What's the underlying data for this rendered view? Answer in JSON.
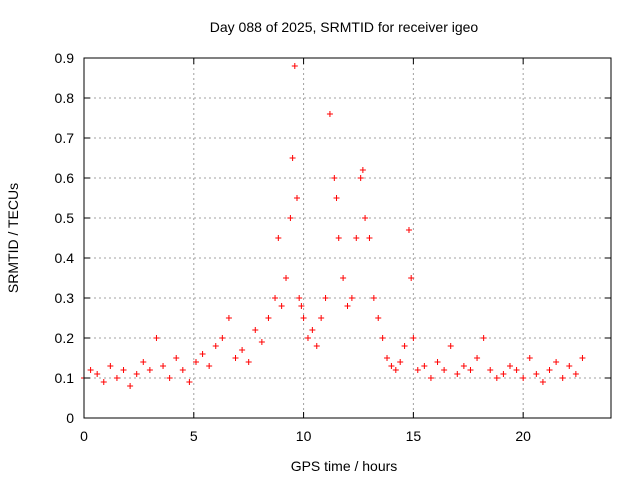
{
  "chart_data": {
    "type": "scatter",
    "title": "Day 088 of 2025, SRMTID for receiver igeo",
    "xlabel": "GPS time / hours",
    "ylabel": "SRMTID / TECUs",
    "xlim": [
      0,
      24
    ],
    "ylim": [
      0,
      0.9
    ],
    "xticks": [
      "0",
      "5",
      "10",
      "15",
      "20"
    ],
    "yticks": [
      "0",
      "0.1",
      "0.2",
      "0.3",
      "0.4",
      "0.5",
      "0.6",
      "0.7",
      "0.8",
      "0.9"
    ],
    "grid": true,
    "marker": "+",
    "color": "#ff0000",
    "series": [
      {
        "name": "SRMTID",
        "x": [
          0.0,
          0.3,
          0.6,
          0.9,
          1.2,
          1.5,
          1.8,
          2.1,
          2.4,
          2.7,
          3.0,
          3.3,
          3.6,
          3.9,
          4.2,
          4.5,
          4.8,
          5.1,
          5.4,
          5.7,
          6.0,
          6.3,
          6.6,
          6.9,
          7.2,
          7.5,
          7.8,
          8.1,
          8.4,
          8.7,
          8.85,
          9.0,
          9.2,
          9.4,
          9.5,
          9.6,
          9.7,
          9.8,
          9.9,
          10.0,
          10.2,
          10.4,
          10.6,
          10.8,
          11.0,
          11.2,
          11.4,
          11.5,
          11.6,
          11.8,
          12.0,
          12.2,
          12.4,
          12.6,
          12.7,
          12.8,
          13.0,
          13.2,
          13.4,
          13.6,
          13.8,
          14.0,
          14.2,
          14.4,
          14.6,
          14.8,
          14.9,
          15.0,
          15.2,
          15.5,
          15.8,
          16.1,
          16.4,
          16.7,
          17.0,
          17.3,
          17.6,
          17.9,
          18.2,
          18.5,
          18.8,
          19.1,
          19.4,
          19.7,
          20.0,
          20.3,
          20.6,
          20.9,
          21.2,
          21.5,
          21.8,
          22.1,
          22.4,
          22.7
        ],
        "y": [
          0.1,
          0.12,
          0.11,
          0.09,
          0.13,
          0.1,
          0.12,
          0.08,
          0.11,
          0.14,
          0.12,
          0.2,
          0.13,
          0.1,
          0.15,
          0.12,
          0.09,
          0.14,
          0.16,
          0.13,
          0.18,
          0.2,
          0.25,
          0.15,
          0.17,
          0.14,
          0.22,
          0.19,
          0.25,
          0.3,
          0.45,
          0.28,
          0.35,
          0.5,
          0.65,
          0.88,
          0.55,
          0.3,
          0.28,
          0.25,
          0.2,
          0.22,
          0.18,
          0.25,
          0.3,
          0.76,
          0.6,
          0.55,
          0.45,
          0.35,
          0.28,
          0.3,
          0.45,
          0.6,
          0.62,
          0.5,
          0.45,
          0.3,
          0.25,
          0.2,
          0.15,
          0.13,
          0.12,
          0.14,
          0.18,
          0.47,
          0.35,
          0.2,
          0.12,
          0.13,
          0.1,
          0.14,
          0.12,
          0.18,
          0.11,
          0.13,
          0.12,
          0.15,
          0.2,
          0.12,
          0.1,
          0.11,
          0.13,
          0.12,
          0.1,
          0.15,
          0.11,
          0.09,
          0.12,
          0.14,
          0.1,
          0.13,
          0.11,
          0.15
        ]
      }
    ]
  }
}
